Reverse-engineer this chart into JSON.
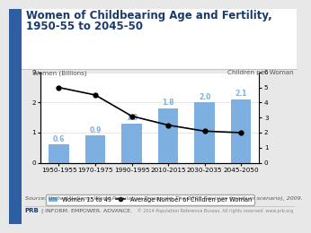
{
  "title_line1": "Women of Childbearing Age and Fertility,",
  "title_line2": "1950-55 to 2045-50",
  "title_color": "#1a3a6b",
  "title_fontsize": 8.5,
  "categories": [
    "1950-1955",
    "1970-1975",
    "1990-1995",
    "2010-2015",
    "2030-2035",
    "2045-2050"
  ],
  "bar_values": [
    0.6,
    0.9,
    1.3,
    1.8,
    2.0,
    2.1
  ],
  "bar_labels": [
    "0.6",
    "0.9",
    "1.3",
    "1.8",
    "2.0",
    "2.1"
  ],
  "bar_color": "#7db0e0",
  "line_values": [
    5.0,
    4.5,
    3.1,
    2.5,
    2.1,
    2.0
  ],
  "left_ylabel": "Women (Billions)",
  "right_ylabel": "Children per Woman",
  "left_ylim": [
    0,
    3
  ],
  "right_ylim": [
    0,
    6
  ],
  "left_yticks": [
    0,
    1,
    2,
    3
  ],
  "right_yticks": [
    0,
    1,
    2,
    3,
    4,
    5,
    6
  ],
  "legend_bar_label": "Women 15 to 49",
  "legend_line_label": "Average Number of Children per Woman",
  "source_text": "Source: United Nations, World Population Prospects: The 2008 Revision (medium scenario), 2009.",
  "footer_left": "PRB",
  "footer_pipe": " | INFORM. EMPOWER. ADVANCE.",
  "footer_right": "© 2014 Population Reference Bureau. All rights reserved. www.prb.org",
  "header_bg": "#ffffff",
  "chart_bg": "#ffffff",
  "outer_bg": "#e8e8e8",
  "sidebar_color": "#2e5fa3",
  "label_fontsize": 5.5,
  "tick_fontsize": 5.2,
  "ylabel_fontsize": 5.2,
  "source_fontsize": 4.5
}
